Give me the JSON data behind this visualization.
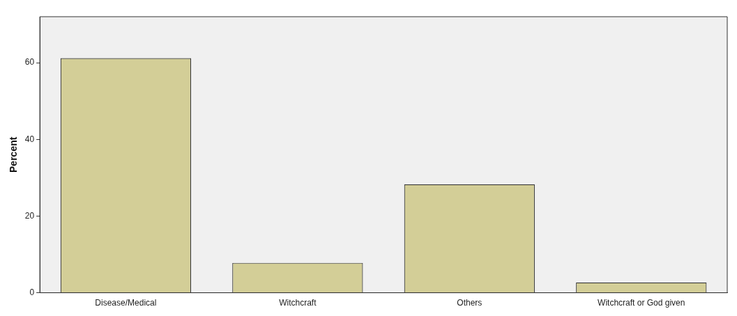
{
  "chart_data": {
    "type": "bar",
    "ylabel": "Percent",
    "categories": [
      "Disease/Medical",
      "Witchcraft",
      "Others",
      "Witchcraft or God given"
    ],
    "values": [
      61.2,
      7.8,
      28.3,
      2.7
    ],
    "color": "#d3ce97",
    "ylim": [
      0,
      72
    ],
    "yticks": [
      0,
      20,
      40,
      60
    ],
    "grid": false,
    "legend": false
  }
}
